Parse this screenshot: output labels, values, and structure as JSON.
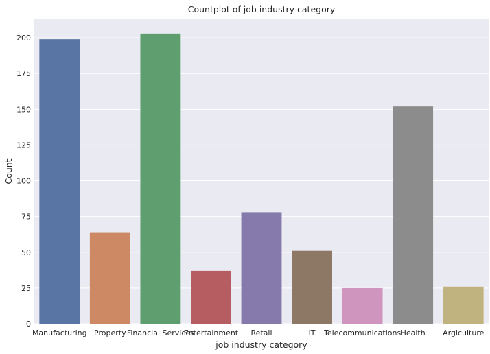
{
  "chart_data": {
    "type": "bar",
    "title": "Countplot of job industry category",
    "xlabel": "job industry category",
    "ylabel": "Count",
    "categories": [
      "Manufacturing",
      "Property",
      "Financial Services",
      "Entertainment",
      "Retail",
      "IT",
      "Telecommunications",
      "Health",
      "Argiculture"
    ],
    "values": [
      199,
      64,
      203,
      37,
      78,
      51,
      25,
      152,
      26
    ],
    "colors": [
      "#5875a4",
      "#cc8963",
      "#5f9e6e",
      "#b55d60",
      "#857aab",
      "#8d7866",
      "#d095bf",
      "#8c8c8c",
      "#c1b37f"
    ],
    "ylim": [
      0,
      213
    ],
    "yticks": [
      0,
      25,
      50,
      75,
      100,
      125,
      150,
      175,
      200
    ],
    "grid": true,
    "background": "#eaeaf2"
  }
}
